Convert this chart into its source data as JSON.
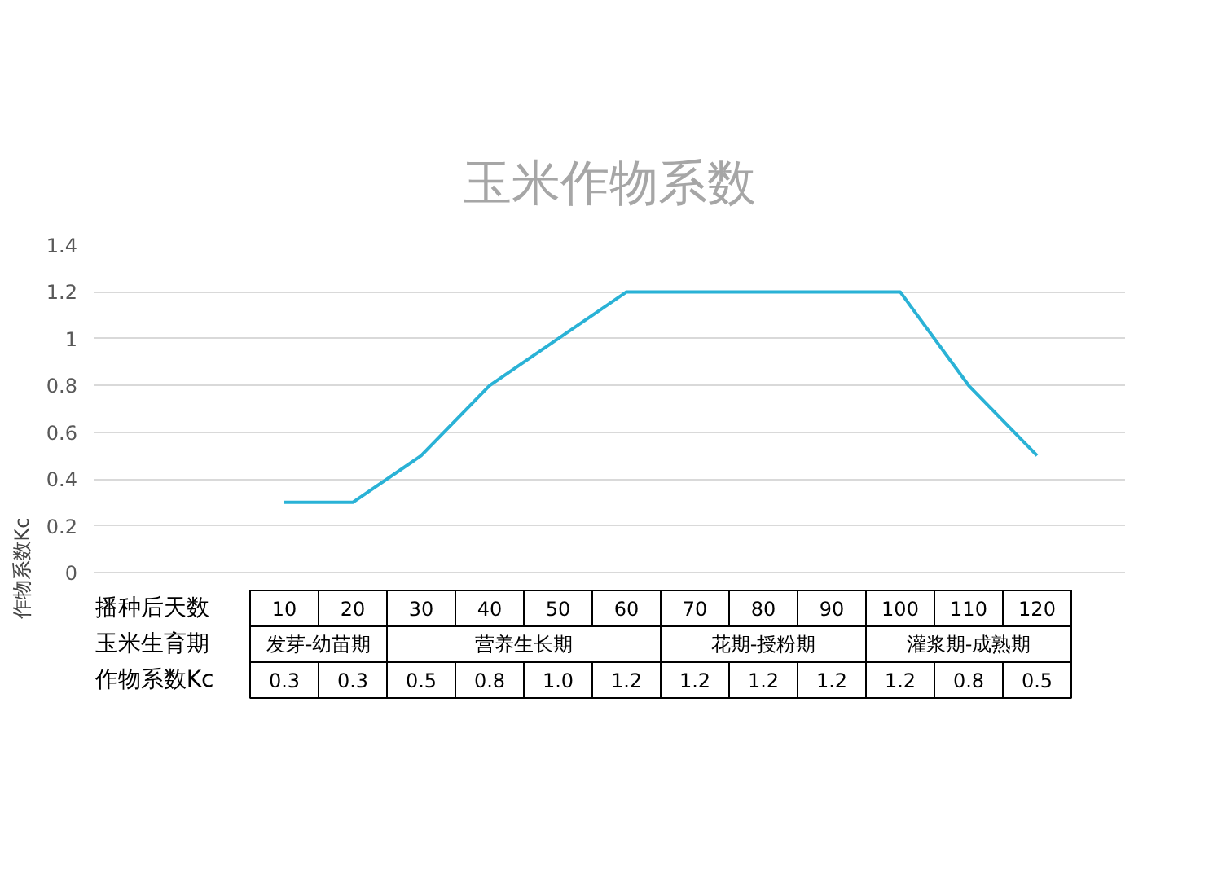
{
  "chart_data": {
    "type": "line",
    "title": "玉米作物系数",
    "ylabel": "作物系数Kc",
    "categories": [
      "10",
      "20",
      "30",
      "40",
      "50",
      "60",
      "70",
      "80",
      "90",
      "100",
      "110",
      "120"
    ],
    "series": [
      {
        "color": "#2ab2d6",
        "values": [
          0.3,
          0.3,
          0.5,
          0.8,
          1.0,
          1.2,
          1.2,
          1.2,
          1.2,
          1.2,
          0.8,
          0.5
        ],
        "value_labels": [
          "0.3",
          "0.3",
          "0.5",
          "0.8",
          "1.0",
          "1.2",
          "1.2",
          "1.2",
          "1.2",
          "1.2",
          "0.8",
          "0.5"
        ]
      }
    ],
    "ylim": [
      0,
      1.4
    ],
    "yticks": [
      0,
      0.2,
      0.4,
      0.6,
      0.8,
      1,
      1.2,
      1.4
    ],
    "grid": "y",
    "annotations": [
      "播种后天数",
      "玉米生育期",
      "作物系数Kc",
      "发芽-幼苗期",
      "营养生长期",
      "花期-授粉期",
      "灌浆期-成熟期"
    ]
  }
}
